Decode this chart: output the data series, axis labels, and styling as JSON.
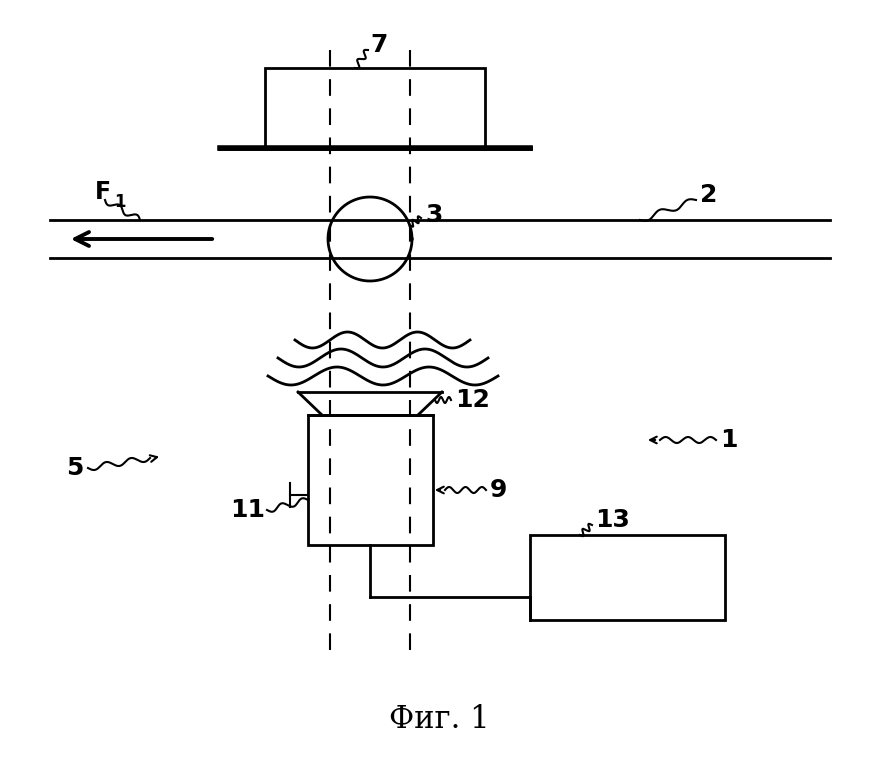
{
  "bg_color": "#ffffff",
  "fig_caption": "Фиг. 1",
  "lw": 2.0,
  "lwt": 1.5,
  "color": "#000000"
}
